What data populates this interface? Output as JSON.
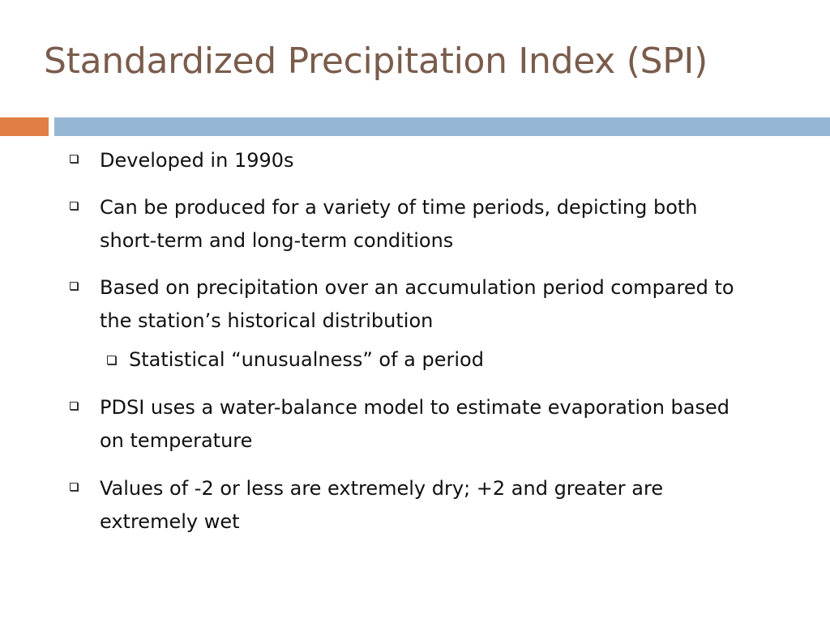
{
  "slide": {
    "title": "Standardized Precipitation Index (SPI)",
    "colors": {
      "title": "#7a5c4c",
      "accent_bar": "#e07f44",
      "main_bar": "#95b6d3",
      "text": "#111111"
    }
  },
  "content": {
    "bullets": [
      {
        "text": "Developed in 1990s"
      },
      {
        "text": "Can be produced for a variety of time periods, depicting both short-term and long-term conditions"
      },
      {
        "text": "Based on precipitation over an accumulation period compared to the station’s historical distribution"
      },
      {
        "text": "Statistical “unusualness” of a period"
      },
      {
        "text": "PDSI uses a water-balance model to estimate evaporation based on temperature"
      },
      {
        "text": "Values of -2 or less are extremely dry; +2 and greater are extremely wet"
      }
    ]
  }
}
